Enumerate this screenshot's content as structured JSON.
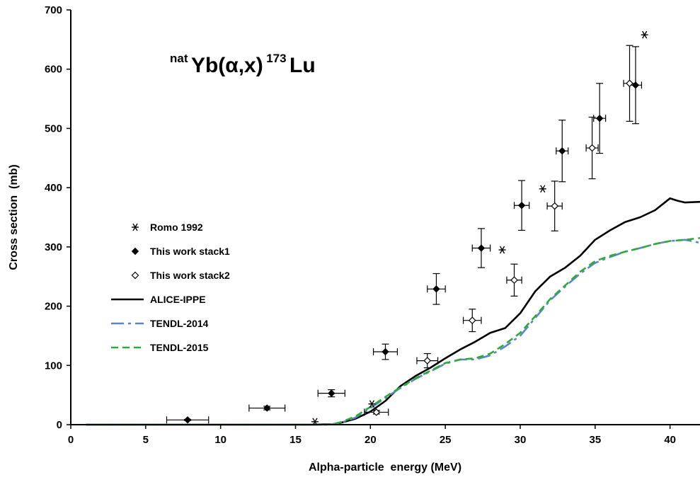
{
  "chart_data": {
    "type": "scatter",
    "title": {
      "pre": "nat",
      "main": "Yb(α,x)",
      "mass": "173",
      "element": "Lu"
    },
    "xlabel": "Alpha-particle  energy (MeV)",
    "ylabel": "Cross section  (mb)",
    "xlim": [
      0,
      42
    ],
    "ylim": [
      0,
      700
    ],
    "xticks": [
      0,
      5,
      10,
      15,
      20,
      25,
      30,
      35,
      40
    ],
    "yticks": [
      0,
      100,
      200,
      300,
      400,
      500,
      600,
      700
    ],
    "legend_position": "middle-left",
    "series": [
      {
        "name": "Romo 1992",
        "kind": "points",
        "marker": "asterisk",
        "color": "#000000",
        "points": [
          {
            "x": 16.3,
            "y": 5
          },
          {
            "x": 20.1,
            "y": 35
          },
          {
            "x": 28.8,
            "y": 295
          },
          {
            "x": 31.5,
            "y": 398
          },
          {
            "x": 38.3,
            "y": 658
          }
        ]
      },
      {
        "name": "This work stack1",
        "kind": "points",
        "marker": "filled-diamond",
        "color": "#000000",
        "points": [
          {
            "x": 7.8,
            "y": 8,
            "xerr": 1.4,
            "yerr": 1
          },
          {
            "x": 13.1,
            "y": 28,
            "xerr": 1.2,
            "yerr": 3
          },
          {
            "x": 17.4,
            "y": 53,
            "xerr": 0.9,
            "yerr": 6
          },
          {
            "x": 21.0,
            "y": 123,
            "xerr": 0.8,
            "yerr": 13
          },
          {
            "x": 24.4,
            "y": 229,
            "xerr": 0.6,
            "yerr": 26
          },
          {
            "x": 27.4,
            "y": 298,
            "xerr": 0.6,
            "yerr": 33
          },
          {
            "x": 30.1,
            "y": 370,
            "xerr": 0.5,
            "yerr": 42
          },
          {
            "x": 32.8,
            "y": 462,
            "xerr": 0.4,
            "yerr": 52
          },
          {
            "x": 35.3,
            "y": 517,
            "xerr": 0.4,
            "yerr": 59
          },
          {
            "x": 37.7,
            "y": 573,
            "xerr": 0.4,
            "yerr": 65
          }
        ]
      },
      {
        "name": "This work stack2",
        "kind": "points",
        "marker": "open-diamond",
        "color": "#000000",
        "points": [
          {
            "x": 20.4,
            "y": 21,
            "xerr": 0.8,
            "yerr": 3
          },
          {
            "x": 23.8,
            "y": 108,
            "xerr": 0.7,
            "yerr": 12
          },
          {
            "x": 26.8,
            "y": 176,
            "xerr": 0.6,
            "yerr": 19
          },
          {
            "x": 29.6,
            "y": 244,
            "xerr": 0.5,
            "yerr": 27
          },
          {
            "x": 32.3,
            "y": 369,
            "xerr": 0.5,
            "yerr": 42
          },
          {
            "x": 34.8,
            "y": 467,
            "xerr": 0.4,
            "yerr": 52
          },
          {
            "x": 37.3,
            "y": 576,
            "xerr": 0.4,
            "yerr": 64
          }
        ]
      },
      {
        "name": "ALICE-IPPE",
        "kind": "line",
        "dash": "solid",
        "color": "#000000",
        "points": [
          {
            "x": 1,
            "y": 0
          },
          {
            "x": 16,
            "y": 0
          },
          {
            "x": 17,
            "y": 0.5
          },
          {
            "x": 17.5,
            "y": 1
          },
          {
            "x": 18,
            "y": 3
          },
          {
            "x": 19,
            "y": 10
          },
          {
            "x": 20,
            "y": 22
          },
          {
            "x": 21,
            "y": 40
          },
          {
            "x": 22,
            "y": 65
          },
          {
            "x": 23,
            "y": 82
          },
          {
            "x": 24,
            "y": 96
          },
          {
            "x": 25,
            "y": 112
          },
          {
            "x": 26,
            "y": 127
          },
          {
            "x": 27,
            "y": 140
          },
          {
            "x": 28,
            "y": 155
          },
          {
            "x": 29,
            "y": 163
          },
          {
            "x": 30,
            "y": 188
          },
          {
            "x": 31,
            "y": 225
          },
          {
            "x": 32,
            "y": 250
          },
          {
            "x": 33,
            "y": 265
          },
          {
            "x": 34,
            "y": 285
          },
          {
            "x": 35,
            "y": 312
          },
          {
            "x": 36,
            "y": 328
          },
          {
            "x": 37,
            "y": 342
          },
          {
            "x": 38,
            "y": 350
          },
          {
            "x": 39,
            "y": 362
          },
          {
            "x": 40,
            "y": 382
          },
          {
            "x": 40.5,
            "y": 378
          },
          {
            "x": 41,
            "y": 375
          },
          {
            "x": 42,
            "y": 376
          }
        ]
      },
      {
        "name": "TENDL-2014",
        "kind": "line",
        "dash": "dash-dot",
        "color": "#5b86c5",
        "points": [
          {
            "x": 1,
            "y": 0
          },
          {
            "x": 17,
            "y": 0
          },
          {
            "x": 17.5,
            "y": 1
          },
          {
            "x": 18,
            "y": 3
          },
          {
            "x": 19,
            "y": 12
          },
          {
            "x": 20,
            "y": 28
          },
          {
            "x": 21,
            "y": 45
          },
          {
            "x": 22,
            "y": 62
          },
          {
            "x": 23,
            "y": 77
          },
          {
            "x": 24,
            "y": 90
          },
          {
            "x": 25,
            "y": 103
          },
          {
            "x": 26,
            "y": 110
          },
          {
            "x": 27,
            "y": 110
          },
          {
            "x": 28,
            "y": 117
          },
          {
            "x": 29,
            "y": 132
          },
          {
            "x": 30,
            "y": 150
          },
          {
            "x": 31,
            "y": 180
          },
          {
            "x": 32,
            "y": 210
          },
          {
            "x": 33,
            "y": 233
          },
          {
            "x": 34,
            "y": 255
          },
          {
            "x": 35,
            "y": 273
          },
          {
            "x": 36,
            "y": 283
          },
          {
            "x": 37,
            "y": 292
          },
          {
            "x": 38,
            "y": 298
          },
          {
            "x": 39,
            "y": 305
          },
          {
            "x": 40,
            "y": 310
          },
          {
            "x": 41,
            "y": 312
          },
          {
            "x": 42,
            "y": 307
          }
        ]
      },
      {
        "name": "TENDL-2015",
        "kind": "line",
        "dash": "dashed",
        "color": "#2eaa3a",
        "points": [
          {
            "x": 1,
            "y": 0
          },
          {
            "x": 17,
            "y": 0
          },
          {
            "x": 17.5,
            "y": 1
          },
          {
            "x": 18,
            "y": 4
          },
          {
            "x": 19,
            "y": 14
          },
          {
            "x": 20,
            "y": 30
          },
          {
            "x": 21,
            "y": 47
          },
          {
            "x": 22,
            "y": 63
          },
          {
            "x": 23,
            "y": 78
          },
          {
            "x": 24,
            "y": 91
          },
          {
            "x": 25,
            "y": 104
          },
          {
            "x": 26,
            "y": 110
          },
          {
            "x": 27,
            "y": 112
          },
          {
            "x": 28,
            "y": 120
          },
          {
            "x": 29,
            "y": 136
          },
          {
            "x": 30,
            "y": 155
          },
          {
            "x": 31,
            "y": 183
          },
          {
            "x": 32,
            "y": 212
          },
          {
            "x": 33,
            "y": 235
          },
          {
            "x": 34,
            "y": 258
          },
          {
            "x": 35,
            "y": 276
          },
          {
            "x": 36,
            "y": 285
          },
          {
            "x": 37,
            "y": 292
          },
          {
            "x": 38,
            "y": 298
          },
          {
            "x": 39,
            "y": 305
          },
          {
            "x": 40,
            "y": 310
          },
          {
            "x": 41,
            "y": 312
          },
          {
            "x": 42,
            "y": 315
          }
        ]
      }
    ]
  }
}
